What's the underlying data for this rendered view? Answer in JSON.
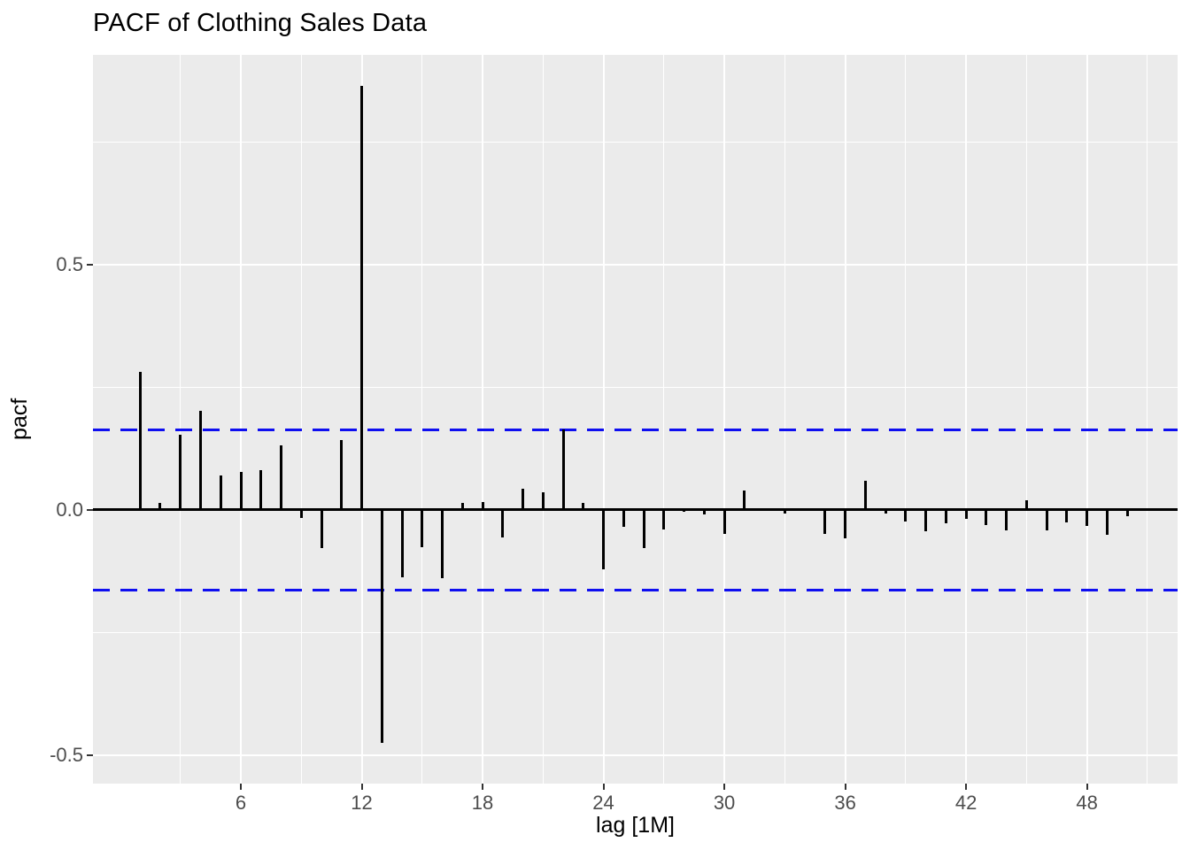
{
  "title": "PACF of Clothing Sales Data",
  "colors": {
    "panel_background": "#EBEBEB",
    "gridline": "#FFFFFF",
    "bar": "#000000",
    "zero_line": "#000000",
    "confidence_line": "#0E0EF0",
    "tick_label": "#4D4D4D",
    "title_text": "#000000"
  },
  "chart_data": {
    "type": "bar",
    "subtype": "pacf-lollipop",
    "title": "PACF of Clothing Sales Data",
    "xlabel": "lag [1M]",
    "ylabel": "pacf",
    "x": [
      1,
      2,
      3,
      4,
      5,
      6,
      7,
      8,
      9,
      10,
      11,
      12,
      13,
      14,
      15,
      16,
      17,
      18,
      19,
      20,
      21,
      22,
      23,
      24,
      25,
      26,
      27,
      28,
      29,
      30,
      31,
      32,
      33,
      34,
      35,
      36,
      37,
      38,
      39,
      40,
      41,
      42,
      43,
      44,
      45,
      46,
      47,
      48,
      49,
      50
    ],
    "values": [
      0.282,
      0.015,
      0.153,
      0.202,
      0.07,
      0.077,
      0.081,
      0.131,
      -0.017,
      -0.078,
      0.142,
      0.865,
      -0.475,
      -0.137,
      -0.076,
      -0.14,
      0.015,
      0.017,
      -0.056,
      0.043,
      0.036,
      0.164,
      0.014,
      -0.121,
      -0.035,
      -0.077,
      -0.039,
      -0.004,
      -0.01,
      -0.049,
      0.039,
      0.002,
      -0.008,
      0.004,
      -0.049,
      -0.057,
      0.06,
      -0.007,
      -0.023,
      -0.043,
      -0.028,
      -0.018,
      -0.031,
      -0.042,
      0.02,
      -0.042,
      -0.025,
      -0.033,
      -0.05,
      -0.012
    ],
    "confidence_bands": [
      0.164,
      -0.164
    ],
    "confidence_style": "dashed",
    "xlim": [
      -1.34,
      52.5
    ],
    "ylim": [
      -0.558,
      0.928
    ],
    "x_ticks": [
      6,
      12,
      18,
      24,
      30,
      36,
      42,
      48
    ],
    "x_tick_labels": [
      "6",
      "12",
      "18",
      "24",
      "30",
      "36",
      "42",
      "48"
    ],
    "y_ticks": [
      0.5,
      0.0,
      -0.5
    ],
    "y_tick_labels": [
      "0.5",
      "0.0",
      "-0.5"
    ],
    "x_minor_gridlines": [
      3,
      9,
      15,
      21,
      27,
      33,
      39,
      45,
      51
    ],
    "y_minor_gridlines": [
      0.75,
      0.25,
      -0.25
    ],
    "grid": true,
    "legend": "none"
  }
}
